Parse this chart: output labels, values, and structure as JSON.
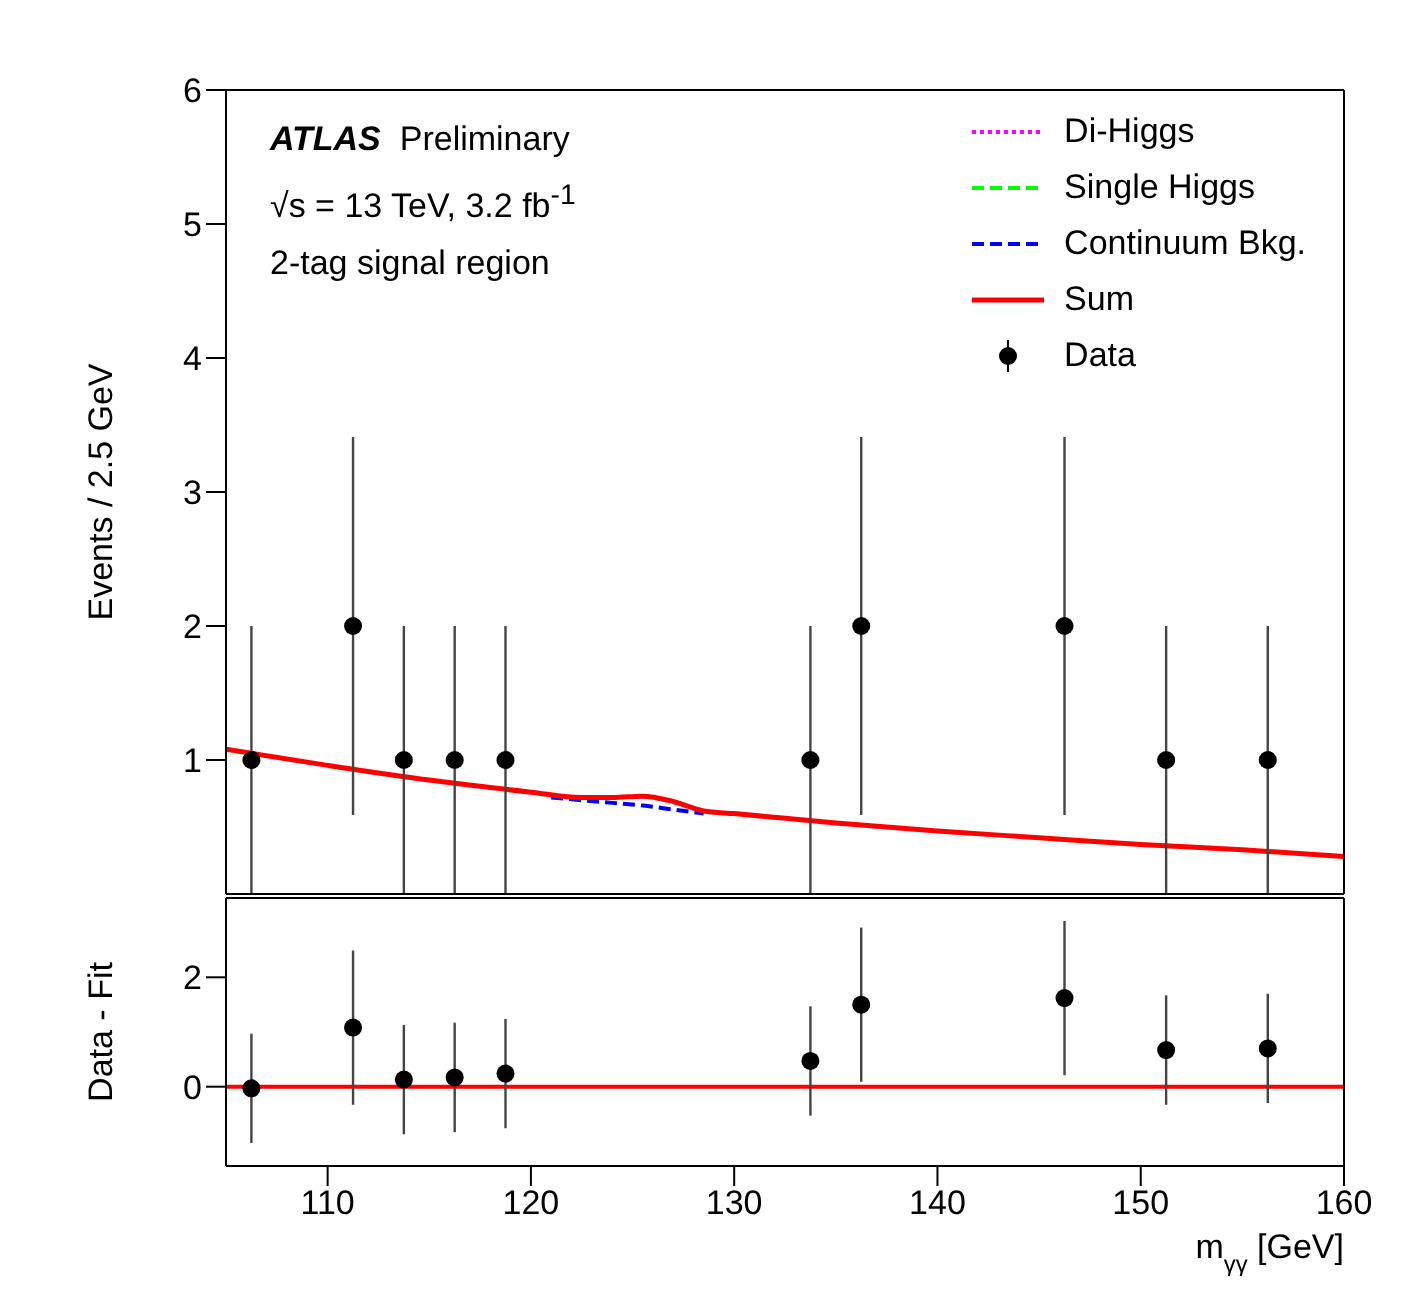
{
  "chart_data": [
    {
      "type": "scatter",
      "ylabel": "Events / 2.5 GeV",
      "annotations": [
        "ATLAS",
        "Preliminary",
        "√s = 13 TeV, 3.2 fb$^{-1}$",
        "2-tag signal region"
      ],
      "xlim": [
        105,
        160
      ],
      "xticks": [
        110,
        120,
        130,
        140,
        150,
        160
      ],
      "ylim": [
        0,
        6
      ],
      "yticks": [
        1,
        2,
        3,
        4,
        5,
        6
      ],
      "tick_labels": "y",
      "legend": "top right",
      "series": [
        {
          "name": "Di-Higgs",
          "type": "line",
          "color": "#ff00ff",
          "line_style": "dotted"
        },
        {
          "name": "Single Higgs",
          "type": "line",
          "color": "#00ff00",
          "line_style": "dashed"
        },
        {
          "name": "Continuum Bkg.",
          "type": "line",
          "color": "#0000ff",
          "line_style": "dashed",
          "x": [
            121,
            122.5,
            124,
            125.5,
            127,
            128.5
          ],
          "values": [
            0.72,
            0.7,
            0.68,
            0.66,
            0.63,
            0.6
          ]
        },
        {
          "name": "Sum",
          "type": "line",
          "color": "#ff0000",
          "line_style": "solid",
          "x": [
            105,
            110,
            115,
            120,
            122.5,
            124,
            125.5,
            127,
            128.5,
            130,
            135,
            140,
            145,
            150,
            155,
            160
          ],
          "values": [
            1.08,
            0.96,
            0.85,
            0.76,
            0.72,
            0.72,
            0.73,
            0.69,
            0.62,
            0.6,
            0.53,
            0.47,
            0.42,
            0.37,
            0.33,
            0.28
          ]
        },
        {
          "name": "Data",
          "type": "scatter",
          "marker": "circle",
          "color": "#000000",
          "x": [
            106.25,
            111.25,
            113.75,
            116.25,
            118.75,
            133.75,
            136.25,
            146.25,
            151.25,
            156.25
          ],
          "values": [
            1,
            2,
            1,
            1,
            1,
            1,
            2,
            2,
            1,
            1
          ],
          "errors": [
            1,
            1.41,
            1,
            1,
            1,
            1,
            1.41,
            1.41,
            1,
            1
          ]
        }
      ]
    },
    {
      "type": "scatter",
      "ylabel": "Data - Fit",
      "xlabel": "m$_{γγ}$ [GeV]",
      "xlim": [
        105,
        160
      ],
      "xticks": [
        110,
        120,
        130,
        140,
        150,
        160
      ],
      "ylim": [
        -1.45,
        3.45
      ],
      "yticks": [
        0,
        2
      ],
      "marker": "circle",
      "color": "#000000",
      "x": [
        106.25,
        111.25,
        113.75,
        116.25,
        118.75,
        133.75,
        136.25,
        146.25,
        151.25,
        156.25
      ],
      "values": [
        -0.03,
        1.08,
        0.13,
        0.17,
        0.24,
        0.47,
        1.5,
        1.62,
        0.67,
        0.7
      ],
      "errors": [
        1,
        1.41,
        1,
        1,
        1,
        1,
        1.41,
        1.41,
        1,
        1
      ],
      "ref_lines": [
        {
          "axis": "y",
          "value": 0,
          "color": "#ff0000",
          "line_style": "solid"
        }
      ]
    }
  ]
}
